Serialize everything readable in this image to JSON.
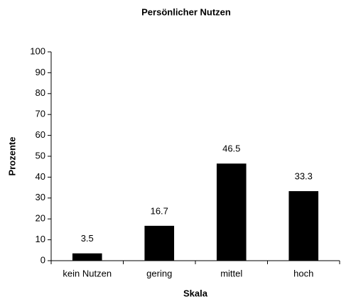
{
  "chart_data": {
    "type": "bar",
    "title": "Persönlicher Nutzen",
    "xlabel": "Skala",
    "ylabel": "Prozente",
    "categories": [
      "kein Nutzen",
      "gering",
      "mittel",
      "hoch"
    ],
    "values": [
      3.5,
      16.7,
      46.5,
      33.3
    ],
    "color": "#000000",
    "ylim": [
      0,
      100
    ],
    "yticks": [
      0,
      10,
      20,
      30,
      40,
      50,
      60,
      70,
      80,
      90,
      100
    ],
    "grid": false
  }
}
